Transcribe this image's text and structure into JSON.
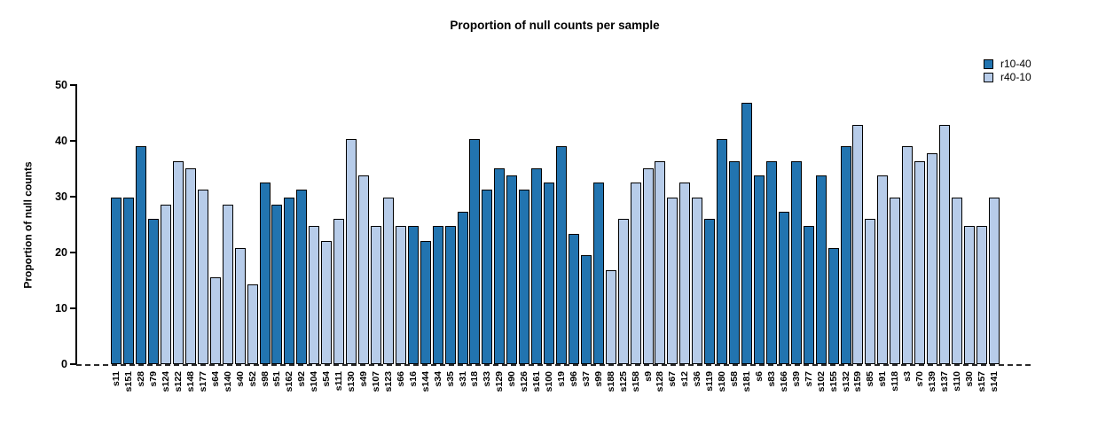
{
  "chart_data": {
    "type": "bar",
    "title": "Proportion of null counts per sample",
    "xlabel": "",
    "ylabel": "Proportion of null counts",
    "ylim": [
      0,
      50
    ],
    "yticks": [
      0,
      10,
      20,
      30,
      40,
      50
    ],
    "grid": false,
    "zero_line_style": "dashed",
    "legend_position": "top-right",
    "series": [
      {
        "name": "r10-40",
        "color": "#2274b0"
      },
      {
        "name": "r40-10",
        "color": "#b7cce9"
      }
    ],
    "bar_border_color": "#000000",
    "bars": [
      {
        "label": "s11",
        "value": 29.9,
        "series": "r10-40"
      },
      {
        "label": "s151",
        "value": 29.9,
        "series": "r10-40"
      },
      {
        "label": "s28",
        "value": 39.0,
        "series": "r10-40"
      },
      {
        "label": "s79",
        "value": 26.0,
        "series": "r10-40"
      },
      {
        "label": "s124",
        "value": 28.6,
        "series": "r40-10"
      },
      {
        "label": "s122",
        "value": 36.4,
        "series": "r40-10"
      },
      {
        "label": "s148",
        "value": 35.1,
        "series": "r40-10"
      },
      {
        "label": "s177",
        "value": 31.2,
        "series": "r40-10"
      },
      {
        "label": "s64",
        "value": 15.6,
        "series": "r40-10"
      },
      {
        "label": "s140",
        "value": 28.6,
        "series": "r40-10"
      },
      {
        "label": "s40",
        "value": 20.8,
        "series": "r40-10"
      },
      {
        "label": "s52",
        "value": 14.3,
        "series": "r40-10"
      },
      {
        "label": "s98",
        "value": 32.5,
        "series": "r10-40"
      },
      {
        "label": "s51",
        "value": 28.6,
        "series": "r10-40"
      },
      {
        "label": "s162",
        "value": 29.9,
        "series": "r10-40"
      },
      {
        "label": "s92",
        "value": 31.2,
        "series": "r10-40"
      },
      {
        "label": "s104",
        "value": 24.7,
        "series": "r40-10"
      },
      {
        "label": "s54",
        "value": 22.1,
        "series": "r40-10"
      },
      {
        "label": "s111",
        "value": 26.0,
        "series": "r40-10"
      },
      {
        "label": "s130",
        "value": 40.3,
        "series": "r40-10"
      },
      {
        "label": "s49",
        "value": 33.8,
        "series": "r40-10"
      },
      {
        "label": "s107",
        "value": 24.7,
        "series": "r40-10"
      },
      {
        "label": "s123",
        "value": 29.9,
        "series": "r40-10"
      },
      {
        "label": "s66",
        "value": 24.7,
        "series": "r40-10"
      },
      {
        "label": "s16",
        "value": 24.7,
        "series": "r10-40"
      },
      {
        "label": "s144",
        "value": 22.1,
        "series": "r10-40"
      },
      {
        "label": "s34",
        "value": 24.7,
        "series": "r10-40"
      },
      {
        "label": "s35",
        "value": 24.7,
        "series": "r10-40"
      },
      {
        "label": "s31",
        "value": 27.3,
        "series": "r10-40"
      },
      {
        "label": "s18",
        "value": 40.3,
        "series": "r10-40"
      },
      {
        "label": "s33",
        "value": 31.2,
        "series": "r10-40"
      },
      {
        "label": "s129",
        "value": 35.1,
        "series": "r10-40"
      },
      {
        "label": "s90",
        "value": 33.8,
        "series": "r10-40"
      },
      {
        "label": "s126",
        "value": 31.2,
        "series": "r10-40"
      },
      {
        "label": "s161",
        "value": 35.1,
        "series": "r10-40"
      },
      {
        "label": "s100",
        "value": 32.5,
        "series": "r10-40"
      },
      {
        "label": "s19",
        "value": 39.0,
        "series": "r10-40"
      },
      {
        "label": "s96",
        "value": 23.4,
        "series": "r10-40"
      },
      {
        "label": "s37",
        "value": 19.5,
        "series": "r10-40"
      },
      {
        "label": "s99",
        "value": 32.5,
        "series": "r10-40"
      },
      {
        "label": "s188",
        "value": 16.9,
        "series": "r40-10"
      },
      {
        "label": "s125",
        "value": 26.0,
        "series": "r40-10"
      },
      {
        "label": "s158",
        "value": 32.5,
        "series": "r40-10"
      },
      {
        "label": "s9",
        "value": 35.1,
        "series": "r40-10"
      },
      {
        "label": "s128",
        "value": 36.4,
        "series": "r40-10"
      },
      {
        "label": "s67",
        "value": 29.9,
        "series": "r40-10"
      },
      {
        "label": "s12",
        "value": 32.5,
        "series": "r40-10"
      },
      {
        "label": "s36",
        "value": 29.9,
        "series": "r40-10"
      },
      {
        "label": "s119",
        "value": 26.0,
        "series": "r10-40"
      },
      {
        "label": "s180",
        "value": 40.3,
        "series": "r10-40"
      },
      {
        "label": "s58",
        "value": 36.4,
        "series": "r10-40"
      },
      {
        "label": "s181",
        "value": 46.8,
        "series": "r10-40"
      },
      {
        "label": "s6",
        "value": 33.8,
        "series": "r10-40"
      },
      {
        "label": "s83",
        "value": 36.4,
        "series": "r10-40"
      },
      {
        "label": "s166",
        "value": 27.3,
        "series": "r10-40"
      },
      {
        "label": "s39",
        "value": 36.4,
        "series": "r10-40"
      },
      {
        "label": "s77",
        "value": 24.7,
        "series": "r10-40"
      },
      {
        "label": "s102",
        "value": 33.8,
        "series": "r10-40"
      },
      {
        "label": "s155",
        "value": 20.8,
        "series": "r10-40"
      },
      {
        "label": "s132",
        "value": 39.0,
        "series": "r10-40"
      },
      {
        "label": "s159",
        "value": 42.9,
        "series": "r40-10"
      },
      {
        "label": "s85",
        "value": 26.0,
        "series": "r40-10"
      },
      {
        "label": "s91",
        "value": 33.8,
        "series": "r40-10"
      },
      {
        "label": "s118",
        "value": 29.9,
        "series": "r40-10"
      },
      {
        "label": "s3",
        "value": 39.0,
        "series": "r40-10"
      },
      {
        "label": "s70",
        "value": 36.4,
        "series": "r40-10"
      },
      {
        "label": "s139",
        "value": 37.7,
        "series": "r40-10"
      },
      {
        "label": "s137",
        "value": 42.9,
        "series": "r40-10"
      },
      {
        "label": "s110",
        "value": 29.9,
        "series": "r40-10"
      },
      {
        "label": "s30",
        "value": 24.7,
        "series": "r40-10"
      },
      {
        "label": "s157",
        "value": 24.7,
        "series": "r40-10"
      },
      {
        "label": "s141",
        "value": 29.9,
        "series": "r40-10"
      }
    ]
  }
}
